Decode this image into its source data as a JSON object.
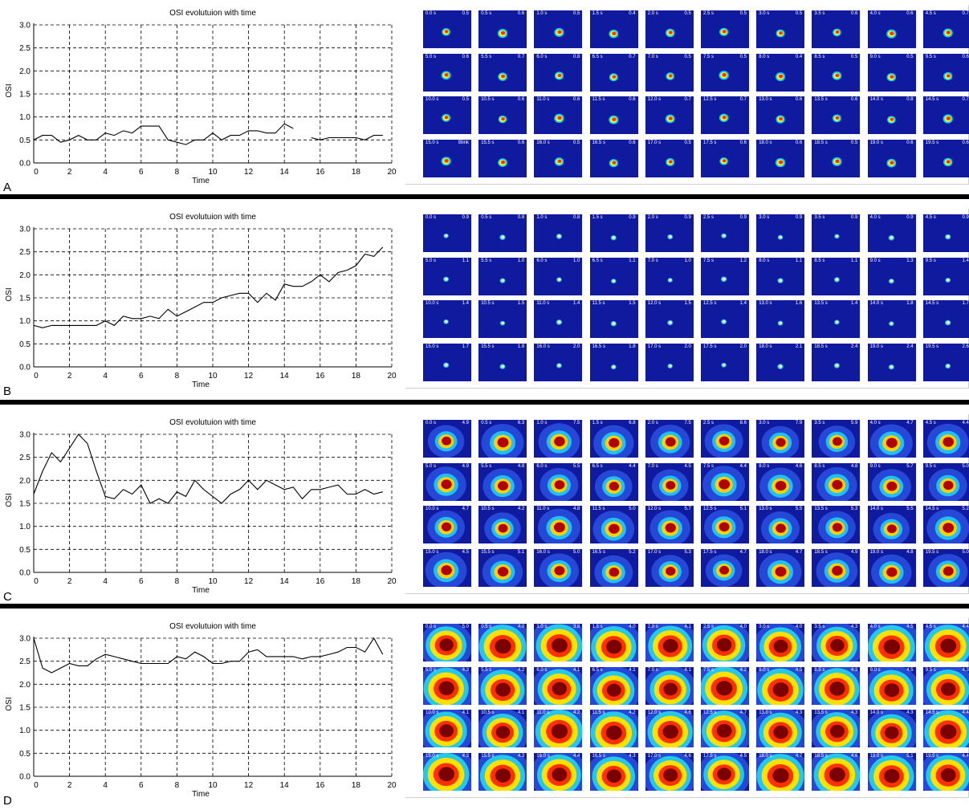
{
  "colors": {
    "line": "#000000",
    "grid": "#000000",
    "thumb_bg": "#101a9e"
  },
  "panels": [
    {
      "letter": "A",
      "chart_data": {
        "type": "line",
        "title": "OSI evolutuion with time",
        "xlabel": "Time",
        "ylabel": "OSI",
        "xlim": [
          0,
          20
        ],
        "ylim": [
          0,
          3
        ],
        "xticks": [
          0,
          2,
          4,
          6,
          8,
          10,
          12,
          14,
          16,
          18,
          20
        ],
        "yticks": [
          0.0,
          0.5,
          1.0,
          1.5,
          2.0,
          2.5,
          3.0
        ],
        "ytick_labels": [
          "0.0",
          "0.5",
          "1.0",
          "1.5",
          "2.0",
          "2.5",
          "3.0"
        ],
        "grid": true,
        "series": [
          {
            "segments": [
              {
                "x": [
                  0,
                  0.5,
                  1,
                  1.5,
                  2,
                  2.5,
                  3,
                  3.5,
                  4,
                  4.5,
                  5,
                  5.5,
                  6,
                  6.5,
                  7,
                  7.5,
                  8,
                  8.5,
                  9,
                  9.5,
                  10,
                  10.5,
                  11,
                  11.5,
                  12,
                  12.5,
                  13,
                  13.5,
                  14,
                  14.5
                ],
                "y": [
                  0.5,
                  0.6,
                  0.6,
                  0.45,
                  0.5,
                  0.6,
                  0.5,
                  0.5,
                  0.65,
                  0.6,
                  0.7,
                  0.65,
                  0.8,
                  0.8,
                  0.8,
                  0.5,
                  0.45,
                  0.4,
                  0.5,
                  0.5,
                  0.65,
                  0.5,
                  0.6,
                  0.6,
                  0.7,
                  0.7,
                  0.65,
                  0.65,
                  0.85,
                  0.75
                ]
              },
              {
                "x": [
                  15.5,
                  16,
                  16.5,
                  17,
                  17.5,
                  18,
                  18.5,
                  19,
                  19.5
                ],
                "y": [
                  0.55,
                  0.5,
                  0.55,
                  0.55,
                  0.55,
                  0.55,
                  0.5,
                  0.6,
                  0.6
                ]
              }
            ]
          }
        ]
      },
      "thumbnails": {
        "times": [
          "0.0 s",
          "0.5 s",
          "1.0 s",
          "1.5 s",
          "2.0 s",
          "2.5 s",
          "3.0 s",
          "3.5 s",
          "4.0 s",
          "4.5 s",
          "5.0 s",
          "5.5 s",
          "6.0 s",
          "6.5 s",
          "7.0 s",
          "7.5 s",
          "8.0 s",
          "8.5 s",
          "9.0 s",
          "9.5 s",
          "10.0 s",
          "10.5 s",
          "11.0 s",
          "11.5 s",
          "12.0 s",
          "12.5 s",
          "13.0 s",
          "13.5 s",
          "14.0 s",
          "14.5 s",
          "15.0 s",
          "15.5 s",
          "16.0 s",
          "16.5 s",
          "17.0 s",
          "17.5 s",
          "18.0 s",
          "18.5 s",
          "19.0 s",
          "19.5 s"
        ],
        "values": [
          "0.5",
          "0.6",
          "0.5",
          "0.4",
          "0.5",
          "0.5",
          "0.5",
          "0.6",
          "0.6",
          "0.7",
          "0.6",
          "0.7",
          "0.8",
          "0.7",
          "0.5",
          "0.5",
          "0.4",
          "0.5",
          "0.5",
          "0.6",
          "0.5",
          "0.6",
          "0.6",
          "0.6",
          "0.7",
          "0.7",
          "0.6",
          "0.6",
          "0.8",
          "0.7",
          "Blink",
          "0.6",
          "0.5",
          "0.6",
          "0.5",
          "0.6",
          "0.6",
          "0.5",
          "0.6",
          "0.6"
        ],
        "spot": "small"
      }
    },
    {
      "letter": "B",
      "chart_data": {
        "type": "line",
        "title": "OSI evolutuion with time",
        "xlabel": "Time",
        "ylabel": "OSI",
        "xlim": [
          0,
          20
        ],
        "ylim": [
          0,
          3
        ],
        "xticks": [
          0,
          2,
          4,
          6,
          8,
          10,
          12,
          14,
          16,
          18,
          20
        ],
        "yticks": [
          0.0,
          0.5,
          1.0,
          1.5,
          2.0,
          2.5,
          3.0
        ],
        "ytick_labels": [
          "0.0",
          "0.5",
          "1.0",
          "1.5",
          "2.0",
          "2.5",
          "3.0"
        ],
        "grid": true,
        "series": [
          {
            "segments": [
              {
                "x": [
                  0,
                  0.5,
                  1,
                  1.5,
                  2,
                  2.5,
                  3,
                  3.5,
                  4,
                  4.5,
                  5,
                  5.5,
                  6,
                  6.5,
                  7,
                  7.5,
                  8,
                  8.5,
                  9,
                  9.5,
                  10,
                  10.5,
                  11,
                  11.5,
                  12,
                  12.5,
                  13,
                  13.5,
                  14,
                  14.5,
                  15,
                  15.5,
                  16,
                  16.5,
                  17,
                  17.5,
                  18,
                  18.5,
                  19,
                  19.5
                ],
                "y": [
                  0.9,
                  0.85,
                  0.9,
                  0.9,
                  0.9,
                  0.9,
                  0.9,
                  0.9,
                  1.0,
                  0.9,
                  1.1,
                  1.05,
                  1.05,
                  1.1,
                  1.05,
                  1.25,
                  1.1,
                  1.2,
                  1.3,
                  1.4,
                  1.4,
                  1.5,
                  1.55,
                  1.6,
                  1.6,
                  1.4,
                  1.6,
                  1.45,
                  1.8,
                  1.75,
                  1.75,
                  1.85,
                  2.0,
                  1.85,
                  2.05,
                  2.1,
                  2.2,
                  2.45,
                  2.4,
                  2.6
                ]
              }
            ]
          }
        ]
      },
      "thumbnails": {
        "times": [
          "0.0 s",
          "0.5 s",
          "1.0 s",
          "1.5 s",
          "2.0 s",
          "2.5 s",
          "3.0 s",
          "3.5 s",
          "4.0 s",
          "4.5 s",
          "5.0 s",
          "5.5 s",
          "6.0 s",
          "6.5 s",
          "7.0 s",
          "7.5 s",
          "8.0 s",
          "8.5 s",
          "9.0 s",
          "9.5 s",
          "10.0 s",
          "10.5 s",
          "11.0 s",
          "11.5 s",
          "12.0 s",
          "12.5 s",
          "13.0 s",
          "13.5 s",
          "14.0 s",
          "14.5 s",
          "15.0 s",
          "15.5 s",
          "16.0 s",
          "16.5 s",
          "17.0 s",
          "17.5 s",
          "18.0 s",
          "18.5 s",
          "19.0 s",
          "19.5 s"
        ],
        "values": [
          "0.9",
          "0.8",
          "0.8",
          "0.9",
          "0.9",
          "0.9",
          "0.9",
          "0.9",
          "0.9",
          "0.9",
          "1.1",
          "1.0",
          "1.0",
          "1.1",
          "1.0",
          "1.2",
          "1.1",
          "1.1",
          "1.3",
          "1.4",
          "1.4",
          "1.5",
          "1.4",
          "1.5",
          "1.5",
          "1.4",
          "1.6",
          "1.4",
          "1.8",
          "1.7",
          "1.7",
          "1.8",
          "2.0",
          "1.8",
          "2.0",
          "2.0",
          "2.1",
          "2.4",
          "2.4",
          "2.6"
        ],
        "spot": "tiny"
      }
    },
    {
      "letter": "C",
      "chart_data": {
        "type": "line",
        "title": "OSI evolutuion with time",
        "xlabel": "Time",
        "ylabel": "OSI",
        "xlim": [
          0,
          20
        ],
        "ylim": [
          0,
          3
        ],
        "xticks": [
          0,
          2,
          4,
          6,
          8,
          10,
          12,
          14,
          16,
          18,
          20
        ],
        "yticks": [
          0.0,
          0.5,
          1.0,
          1.5,
          2.0,
          2.5,
          3.0
        ],
        "ytick_labels": [
          "0.0",
          "0.5",
          "1.0",
          "1.5",
          "2.0",
          "2.5",
          "3.0"
        ],
        "grid": true,
        "series": [
          {
            "segments": [
              {
                "x": [
                  0,
                  0.5,
                  1,
                  1.5,
                  2,
                  2.5,
                  3,
                  3.5,
                  4,
                  4.5,
                  5,
                  5.5,
                  6,
                  6.5,
                  7,
                  7.5,
                  8,
                  8.5,
                  9,
                  9.5,
                  10,
                  10.5,
                  11,
                  11.5,
                  12,
                  12.5,
                  13,
                  13.5,
                  14,
                  14.5,
                  15,
                  15.5,
                  16,
                  16.5,
                  17,
                  17.5,
                  18,
                  18.5,
                  19,
                  19.5
                ],
                "y": [
                  1.7,
                  2.2,
                  2.6,
                  2.4,
                  2.7,
                  3.0,
                  2.8,
                  2.2,
                  1.65,
                  1.6,
                  1.8,
                  1.7,
                  1.9,
                  1.5,
                  1.6,
                  1.5,
                  1.75,
                  1.65,
                  2.0,
                  1.8,
                  1.65,
                  1.5,
                  1.7,
                  1.8,
                  2.0,
                  1.8,
                  2.0,
                  1.9,
                  1.8,
                  1.85,
                  1.6,
                  1.8,
                  1.8,
                  1.85,
                  1.9,
                  1.7,
                  1.7,
                  1.8,
                  1.7,
                  1.75
                ]
              }
            ]
          }
        ]
      },
      "thumbnails": {
        "times": [
          "0.0 s",
          "0.5 s",
          "1.0 s",
          "1.5 s",
          "2.0 s",
          "2.5 s",
          "3.0 s",
          "3.5 s",
          "4.0 s",
          "4.5 s",
          "5.0 s",
          "5.5 s",
          "6.0 s",
          "6.5 s",
          "7.0 s",
          "7.5 s",
          "8.0 s",
          "8.5 s",
          "9.0 s",
          "9.5 s",
          "10.0 s",
          "10.5 s",
          "11.0 s",
          "11.5 s",
          "12.0 s",
          "12.5 s",
          "13.0 s",
          "13.5 s",
          "14.0 s",
          "14.5 s",
          "15.0 s",
          "15.5 s",
          "16.0 s",
          "16.5 s",
          "17.0 s",
          "17.5 s",
          "18.0 s",
          "18.5 s",
          "19.0 s",
          "19.5 s"
        ],
        "values": [
          "4.9",
          "6.3",
          "7.5",
          "6.8",
          "7.5",
          "8.6",
          "7.9",
          "5.9",
          "4.7",
          "4.4",
          "4.9",
          "4.8",
          "5.5",
          "4.4",
          "4.5",
          "4.4",
          "4.6",
          "4.8",
          "5.7",
          "5.0",
          "4.7",
          "4.2",
          "4.8",
          "5.0",
          "5.7",
          "5.1",
          "5.5",
          "5.3",
          "5.5",
          "5.2",
          "4.5",
          "5.1",
          "5.0",
          "5.2",
          "5.3",
          "4.7",
          "4.7",
          "4.9",
          "4.8",
          "5.0"
        ],
        "spot": "medium"
      }
    },
    {
      "letter": "D",
      "chart_data": {
        "type": "line",
        "title": "OSI evolutuion with time",
        "xlabel": "Time",
        "ylabel": "OSI",
        "xlim": [
          0,
          20
        ],
        "ylim": [
          0,
          3
        ],
        "xticks": [
          0,
          2,
          4,
          6,
          8,
          10,
          12,
          14,
          16,
          18,
          20
        ],
        "yticks": [
          0.0,
          0.5,
          1.0,
          1.5,
          2.0,
          2.5,
          3.0
        ],
        "ytick_labels": [
          "0.0",
          "0.5",
          "1.0",
          "1.5",
          "2.0",
          "2.5",
          "3.0"
        ],
        "grid": true,
        "series": [
          {
            "segments": [
              {
                "x": [
                  0,
                  0.5,
                  1,
                  1.5,
                  2,
                  2.5,
                  3,
                  3.5,
                  4,
                  4.5,
                  5,
                  5.5,
                  6,
                  6.5,
                  7,
                  7.5,
                  8,
                  8.5,
                  9,
                  9.5,
                  10,
                  10.5,
                  11,
                  11.5,
                  12,
                  12.5,
                  13,
                  13.5,
                  14,
                  14.5,
                  15,
                  15.5,
                  16,
                  16.5,
                  17,
                  17.5,
                  18,
                  18.5,
                  19,
                  19.5
                ],
                "y": [
                  3.0,
                  2.35,
                  2.25,
                  2.35,
                  2.45,
                  2.4,
                  2.4,
                  2.55,
                  2.65,
                  2.6,
                  2.55,
                  2.5,
                  2.45,
                  2.45,
                  2.45,
                  2.45,
                  2.6,
                  2.55,
                  2.7,
                  2.6,
                  2.45,
                  2.45,
                  2.5,
                  2.5,
                  2.7,
                  2.75,
                  2.6,
                  2.6,
                  2.6,
                  2.6,
                  2.55,
                  2.6,
                  2.6,
                  2.65,
                  2.7,
                  2.8,
                  2.8,
                  2.7,
                  3.0,
                  2.65
                ]
              }
            ]
          }
        ]
      },
      "thumbnails": {
        "times": [
          "0.0 s",
          "0.5 s",
          "1.0 s",
          "1.5 s",
          "2.0 s",
          "2.5 s",
          "3.0 s",
          "3.5 s",
          "4.0 s",
          "4.5 s",
          "5.0 s",
          "5.5 s",
          "6.0 s",
          "6.5 s",
          "7.0 s",
          "7.5 s",
          "8.0 s",
          "8.5 s",
          "9.0 s",
          "9.5 s",
          "10.0 s",
          "10.5 s",
          "11.0 s",
          "11.5 s",
          "12.0 s",
          "12.5 s",
          "13.0 s",
          "13.5 s",
          "14.0 s",
          "14.5 s",
          "15.0 s",
          "15.5 s",
          "16.0 s",
          "16.5 s",
          "17.0 s",
          "17.5 s",
          "18.0 s",
          "18.5 s",
          "19.0 s",
          "19.5 s"
        ],
        "values": [
          "5.0",
          "4.0",
          "3.8",
          "4.0",
          "4.1",
          "4.0",
          "4.0",
          "4.3",
          "4.5",
          "4.4",
          "4.3",
          "4.2",
          "4.1",
          "4.1",
          "4.1",
          "4.2",
          "4.5",
          "4.3",
          "4.5",
          "4.3",
          "4.1",
          "4.1",
          "4.2",
          "4.2",
          "4.6",
          "4.7",
          "4.3",
          "4.3",
          "4.3",
          "4.4",
          "4.3",
          "4.3",
          "4.4",
          "4.3",
          "4.6",
          "4.5",
          "4.7",
          "4.6",
          "5.1",
          "4.4"
        ],
        "spot": "large"
      }
    }
  ]
}
